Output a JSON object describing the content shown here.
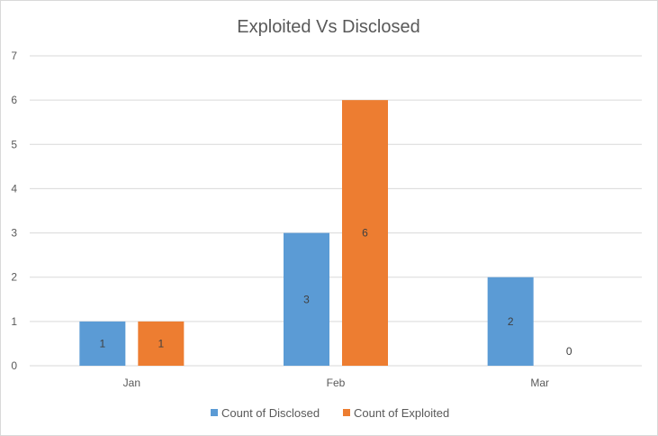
{
  "chart_data": {
    "type": "bar",
    "title": "Exploited Vs Disclosed",
    "categories": [
      "Jan",
      "Feb",
      "Mar"
    ],
    "series": [
      {
        "name": "Count of Disclosed",
        "values": [
          1,
          3,
          2
        ],
        "color": "#5b9bd5"
      },
      {
        "name": "Count of Exploited",
        "values": [
          1,
          6,
          0
        ],
        "color": "#ed7d31"
      }
    ],
    "ylim": [
      0,
      7
    ],
    "yticks": [
      "0",
      "1",
      "2",
      "3",
      "4",
      "5",
      "6",
      "7"
    ],
    "grid": true,
    "legend": "bottom",
    "data_labels": true,
    "colors": {
      "gridline": "#d9d9d9",
      "axis_text": "#595959",
      "label_text": "#404040"
    }
  }
}
